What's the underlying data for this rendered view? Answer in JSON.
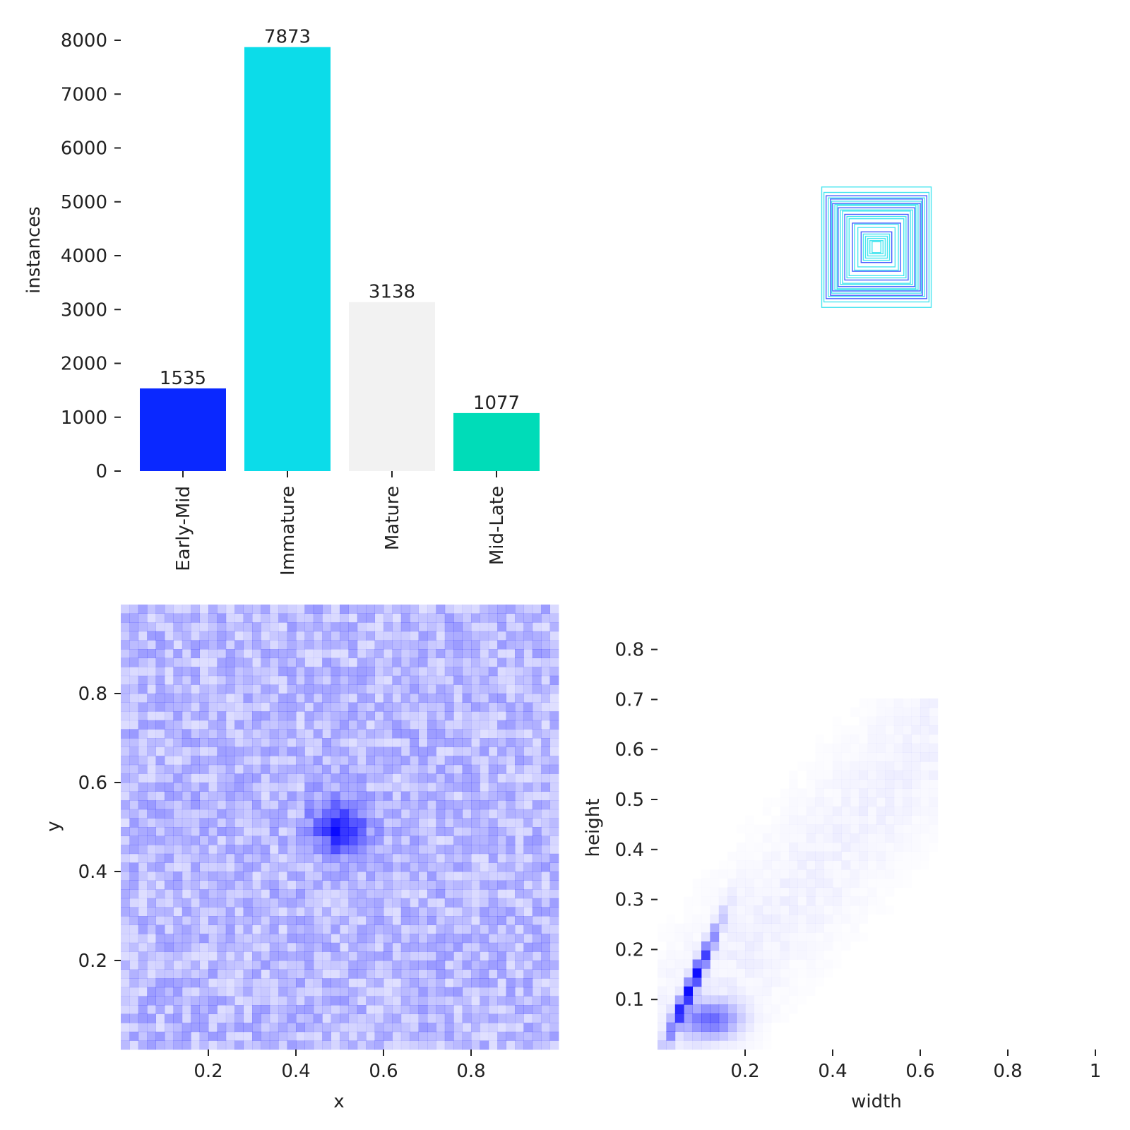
{
  "chart_data": [
    {
      "type": "bar",
      "ylabel": "instances",
      "categories": [
        "Early-Mid",
        "Immature",
        "Mature",
        "Mid-Late"
      ],
      "values": [
        1535,
        7873,
        3138,
        1077
      ],
      "colors": [
        "#0a28ff",
        "#0cdce9",
        "#f2f2f2",
        "#00dcb8"
      ],
      "ylim": [
        0,
        8000
      ],
      "yticks": [
        0,
        1000,
        2000,
        3000,
        4000,
        5000,
        6000,
        7000,
        8000
      ],
      "grid": false
    },
    {
      "type": "boxes",
      "description_color_1": "#0a28ff",
      "description_color_2": "#0cdce9",
      "boxes": [
        {
          "w": 0.5,
          "h": 0.55,
          "color": "#0cdce9"
        },
        {
          "w": 0.48,
          "h": 0.5,
          "color": "#0cdce9"
        },
        {
          "w": 0.46,
          "h": 0.47,
          "color": "#0a28ff"
        },
        {
          "w": 0.44,
          "h": 0.45,
          "color": "#0cdce9"
        },
        {
          "w": 0.42,
          "h": 0.44,
          "color": "#0a28ff"
        },
        {
          "w": 0.41,
          "h": 0.42,
          "color": "#0cdce9"
        },
        {
          "w": 0.4,
          "h": 0.4,
          "color": "#0a28ff"
        },
        {
          "w": 0.38,
          "h": 0.39,
          "color": "#0cdce9"
        },
        {
          "w": 0.36,
          "h": 0.38,
          "color": "#0cdce9"
        },
        {
          "w": 0.35,
          "h": 0.36,
          "color": "#0a28ff"
        },
        {
          "w": 0.33,
          "h": 0.34,
          "color": "#0cdce9"
        },
        {
          "w": 0.31,
          "h": 0.33,
          "color": "#0cdce9"
        },
        {
          "w": 0.29,
          "h": 0.3,
          "color": "#0a28ff"
        },
        {
          "w": 0.27,
          "h": 0.28,
          "color": "#0cdce9"
        },
        {
          "w": 0.25,
          "h": 0.26,
          "color": "#0cdce9"
        },
        {
          "w": 0.22,
          "h": 0.22,
          "color": "#0a28ff"
        },
        {
          "w": 0.2,
          "h": 0.21,
          "color": "#0cdce9"
        },
        {
          "w": 0.17,
          "h": 0.18,
          "color": "#0cdce9"
        },
        {
          "w": 0.14,
          "h": 0.14,
          "color": "#0a28ff"
        },
        {
          "w": 0.12,
          "h": 0.12,
          "color": "#0cdce9"
        },
        {
          "w": 0.1,
          "h": 0.1,
          "color": "#0cdce9"
        },
        {
          "w": 0.08,
          "h": 0.08,
          "color": "#0cdce9"
        },
        {
          "w": 0.06,
          "h": 0.06,
          "color": "#0cdce9"
        },
        {
          "w": 0.04,
          "h": 0.05,
          "color": "#0cdce9"
        }
      ]
    },
    {
      "type": "heatmap",
      "xlabel": "x",
      "ylabel": "y",
      "xlim": [
        0,
        1
      ],
      "ylim": [
        0,
        1
      ],
      "xticks": [
        0.2,
        0.4,
        0.6,
        0.8
      ],
      "yticks": [
        0.2,
        0.4,
        0.6,
        0.8
      ],
      "bins": 50,
      "color": "#0000ff",
      "peak": {
        "x": 0.5,
        "y": 0.5
      },
      "grid": false
    },
    {
      "type": "heatmap",
      "xlabel": "width",
      "ylabel": "height",
      "xlim": [
        0,
        1
      ],
      "ylim": [
        0,
        0.9
      ],
      "xticks": [
        0.2,
        0.4,
        0.6,
        0.8,
        1.0
      ],
      "yticks": [
        0.1,
        0.2,
        0.3,
        0.4,
        0.5,
        0.6,
        0.7,
        0.8
      ],
      "bins": 50,
      "color": "#0000ff",
      "peak": {
        "x": 0.06,
        "y": 0.1
      },
      "grid": false
    }
  ]
}
